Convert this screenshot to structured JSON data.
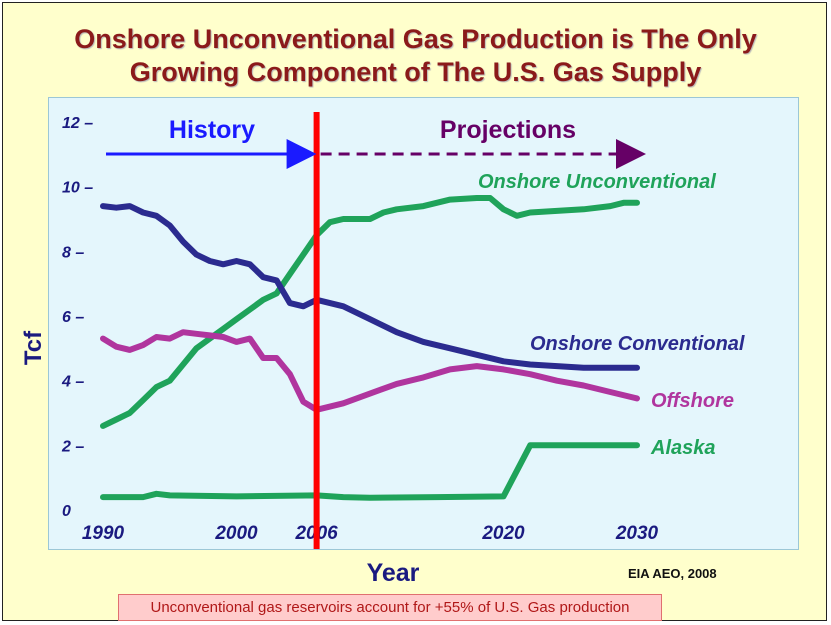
{
  "title_line1": "Onshore Unconventional Gas Production is The Only",
  "title_line2": "Growing Component of The U.S. Gas Supply",
  "source": "EIA AEO, 2008",
  "footnote": "Unconventional gas reservoirs account for +55% of U.S. Gas production",
  "colors": {
    "title": "#8b1a1a",
    "background": "#ffffcc",
    "plot_background": "#e4f6fc",
    "axis_text": "#1a1a80",
    "divider": "#ff0000",
    "history": "#1a1aff",
    "projections": "#660066",
    "onshore_unconventional": "#1fa35a",
    "onshore_conventional": "#2b2b8f",
    "offshore": "#b0359e",
    "alaska": "#1fa35a"
  },
  "chart_data": {
    "type": "line",
    "xlabel": "Year",
    "ylabel": "Tcf",
    "xlim": [
      1990,
      2030
    ],
    "ylim": [
      0,
      12
    ],
    "x_ticks": [
      "1990",
      "2000",
      "2006",
      "2020",
      "2030"
    ],
    "y_ticks": [
      "0",
      "2 –",
      "4 –",
      "6 –",
      "8 –",
      "10 –",
      "12 –"
    ],
    "divider_year": 2006,
    "history_label": "History",
    "projections_label": "Projections",
    "grid": false,
    "series": [
      {
        "name": "Onshore Unconventional",
        "color": "#1fa35a",
        "x": [
          1990,
          1991,
          1992,
          1993,
          1994,
          1995,
          1996,
          1997,
          1998,
          1999,
          2000,
          2001,
          2002,
          2003,
          2004,
          2005,
          2006,
          2007,
          2008,
          2010,
          2011,
          2012,
          2014,
          2016,
          2018,
          2019,
          2020,
          2021,
          2022,
          2024,
          2026,
          2028,
          2029,
          2030
        ],
        "y": [
          2.6,
          2.8,
          3.0,
          3.4,
          3.8,
          4.0,
          4.5,
          5.0,
          5.3,
          5.6,
          5.9,
          6.2,
          6.5,
          6.7,
          7.3,
          7.9,
          8.5,
          8.9,
          9.0,
          9.0,
          9.2,
          9.3,
          9.4,
          9.6,
          9.65,
          9.65,
          9.3,
          9.1,
          9.2,
          9.25,
          9.3,
          9.4,
          9.5,
          9.5
        ]
      },
      {
        "name": "Onshore Conventional",
        "color": "#2b2b8f",
        "x": [
          1990,
          1991,
          1992,
          1993,
          1994,
          1995,
          1996,
          1997,
          1998,
          1999,
          2000,
          2001,
          2002,
          2003,
          2004,
          2005,
          2006,
          2008,
          2010,
          2012,
          2014,
          2016,
          2018,
          2020,
          2022,
          2024,
          2026,
          2028,
          2030
        ],
        "y": [
          9.4,
          9.35,
          9.4,
          9.2,
          9.1,
          8.8,
          8.3,
          7.9,
          7.7,
          7.6,
          7.7,
          7.6,
          7.2,
          7.1,
          6.4,
          6.3,
          6.5,
          6.3,
          5.9,
          5.5,
          5.2,
          5.0,
          4.8,
          4.6,
          4.5,
          4.45,
          4.4,
          4.4,
          4.4
        ]
      },
      {
        "name": "Offshore",
        "color": "#b0359e",
        "x": [
          1990,
          1991,
          1992,
          1993,
          1994,
          1995,
          1996,
          1997,
          1998,
          1999,
          2000,
          2001,
          2002,
          2003,
          2004,
          2005,
          2006,
          2008,
          2010,
          2012,
          2014,
          2016,
          2018,
          2020,
          2022,
          2024,
          2026,
          2028,
          2030
        ],
        "y": [
          5.3,
          5.05,
          4.95,
          5.1,
          5.35,
          5.3,
          5.5,
          5.45,
          5.4,
          5.35,
          5.2,
          5.3,
          4.7,
          4.7,
          4.2,
          3.35,
          3.1,
          3.3,
          3.6,
          3.9,
          4.1,
          4.35,
          4.45,
          4.35,
          4.2,
          4.0,
          3.85,
          3.65,
          3.45
        ]
      },
      {
        "name": "Alaska",
        "color": "#1fa35a",
        "x": [
          1990,
          1993,
          1994,
          1995,
          2000,
          2006,
          2008,
          2010,
          2015,
          2020,
          2022,
          2030
        ],
        "y": [
          0.4,
          0.4,
          0.5,
          0.45,
          0.42,
          0.45,
          0.4,
          0.38,
          0.4,
          0.42,
          2.0,
          2.0
        ]
      }
    ]
  }
}
